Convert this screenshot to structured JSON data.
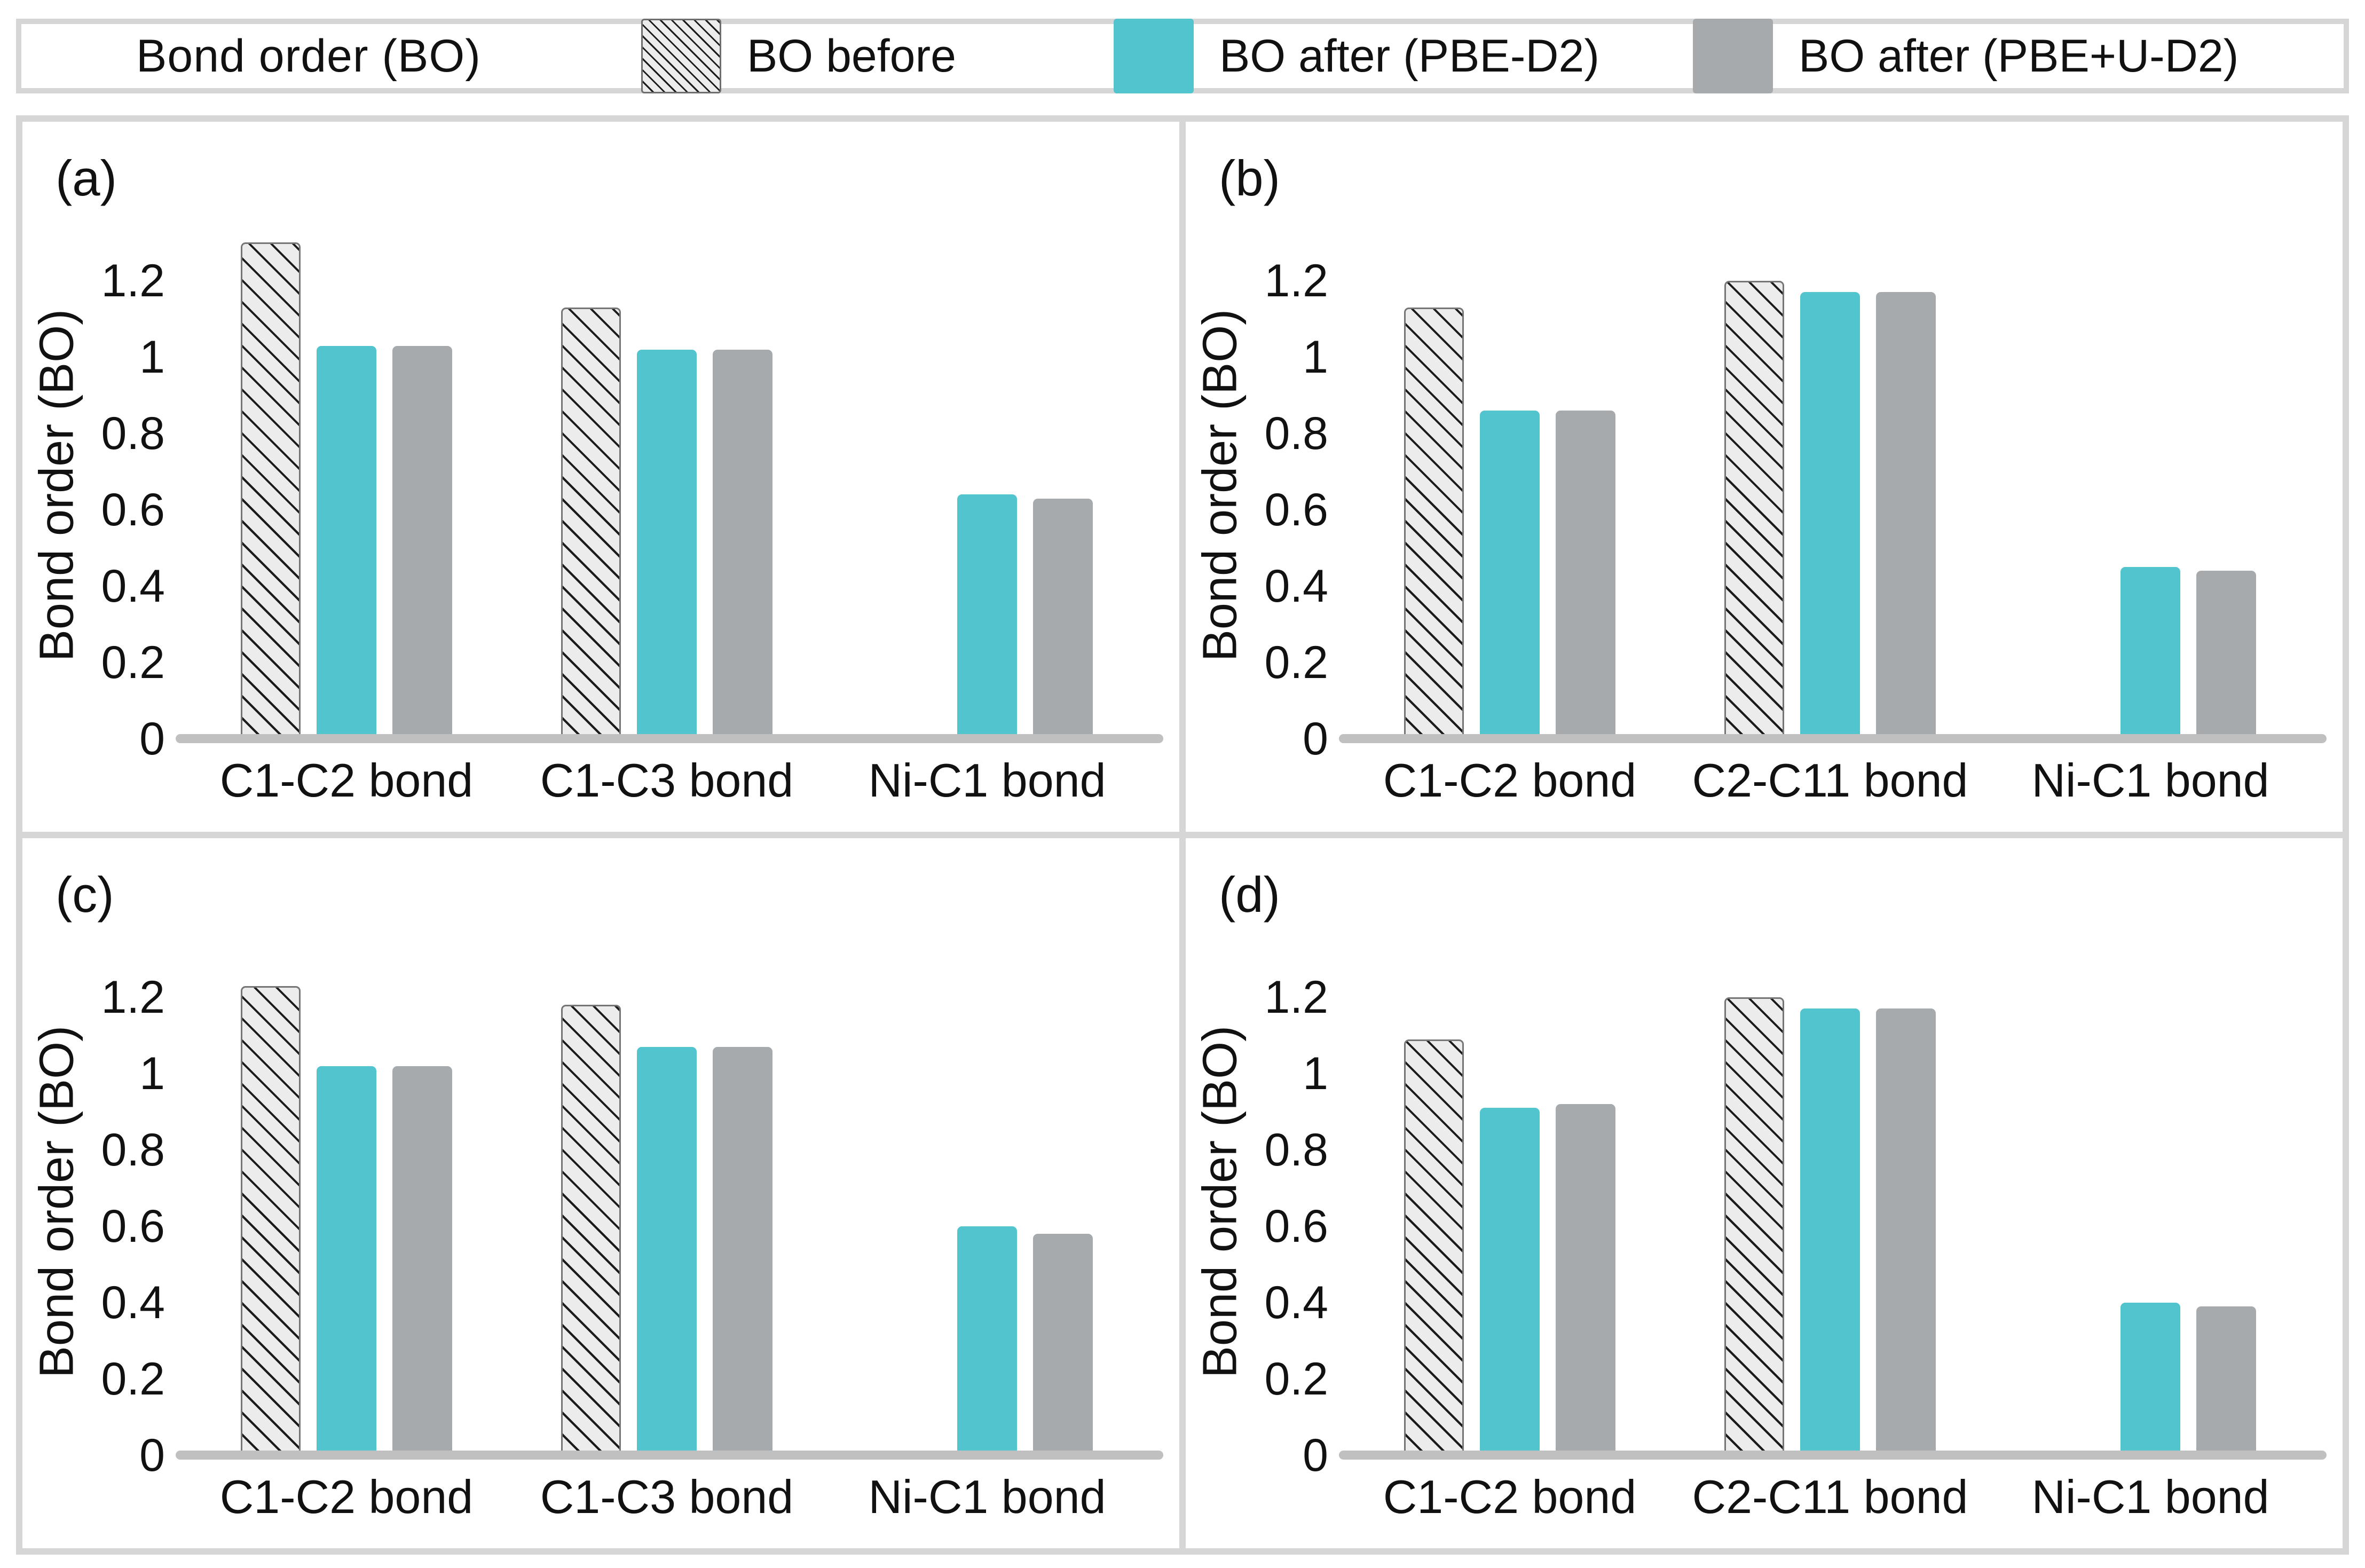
{
  "legend": {
    "title": "Bond order (BO)",
    "items": [
      {
        "label": "BO before",
        "swatch": "hatched-swatch"
      },
      {
        "label": "BO after (PBE-D2)",
        "swatch": "teal-swatch"
      },
      {
        "label": "BO after (PBE+U-D2)",
        "swatch": "gray-swatch"
      }
    ]
  },
  "colors": {
    "teal": "#52C4CE",
    "gray": "#A7AAAD",
    "hatch_background": "#ECECEC",
    "hatch_line": "#1b1b1b",
    "baseline": "#C0C0C0",
    "panel_border": "#D6D6D6",
    "text": "#111111"
  },
  "axis": {
    "ylabel": "Bond order (BO)",
    "tick_labels": [
      "0",
      "0.2",
      "0.4",
      "0.6",
      "0.8",
      "1",
      "1.2"
    ],
    "tick_values": [
      0,
      0.2,
      0.4,
      0.6,
      0.8,
      1,
      1.2
    ],
    "ymax": 1.33
  },
  "chart_data": [
    {
      "panel": "(a)",
      "type": "bar",
      "categories": [
        "C1-C2 bond",
        "C1-C3 bond",
        "Ni-C1 bond"
      ],
      "series": [
        {
          "name": "BO before",
          "values": [
            1.3,
            1.13,
            null
          ]
        },
        {
          "name": "BO after (PBE-D2)",
          "values": [
            1.03,
            1.02,
            0.64
          ]
        },
        {
          "name": "BO after (PBE+U-D2)",
          "values": [
            1.03,
            1.02,
            0.63
          ]
        }
      ],
      "xlabel": "",
      "ylabel": "Bond order (BO)",
      "ylim": [
        0,
        1.33
      ],
      "grid": false,
      "legend_position": "top-shared"
    },
    {
      "panel": "(b)",
      "type": "bar",
      "categories": [
        "C1-C2 bond",
        "C2-C11 bond",
        "Ni-C1 bond"
      ],
      "series": [
        {
          "name": "BO before",
          "values": [
            1.13,
            1.2,
            null
          ]
        },
        {
          "name": "BO after (PBE-D2)",
          "values": [
            0.86,
            1.17,
            0.45
          ]
        },
        {
          "name": "BO after (PBE+U-D2)",
          "values": [
            0.86,
            1.17,
            0.44
          ]
        }
      ],
      "xlabel": "",
      "ylabel": "Bond order (BO)",
      "ylim": [
        0,
        1.33
      ],
      "grid": false,
      "legend_position": "top-shared"
    },
    {
      "panel": "(c)",
      "type": "bar",
      "categories": [
        "C1-C2 bond",
        "C1-C3 bond",
        "Ni-C1 bond"
      ],
      "series": [
        {
          "name": "BO before",
          "values": [
            1.23,
            1.18,
            null
          ]
        },
        {
          "name": "BO after (PBE-D2)",
          "values": [
            1.02,
            1.07,
            0.6
          ]
        },
        {
          "name": "BO after (PBE+U-D2)",
          "values": [
            1.02,
            1.07,
            0.58
          ]
        }
      ],
      "xlabel": "",
      "ylabel": "Bond order (BO)",
      "ylim": [
        0,
        1.33
      ],
      "grid": false,
      "legend_position": "top-shared"
    },
    {
      "panel": "(d)",
      "type": "bar",
      "categories": [
        "C1-C2 bond",
        "C2-C11 bond",
        "Ni-C1 bond"
      ],
      "series": [
        {
          "name": "BO before",
          "values": [
            1.09,
            1.2,
            null
          ]
        },
        {
          "name": "BO after (PBE-D2)",
          "values": [
            0.91,
            1.17,
            0.4
          ]
        },
        {
          "name": "BO after (PBE+U-D2)",
          "values": [
            0.92,
            1.17,
            0.39
          ]
        }
      ],
      "xlabel": "",
      "ylabel": "Bond order (BO)",
      "ylim": [
        0,
        1.33
      ],
      "grid": false,
      "legend_position": "top-shared"
    }
  ]
}
